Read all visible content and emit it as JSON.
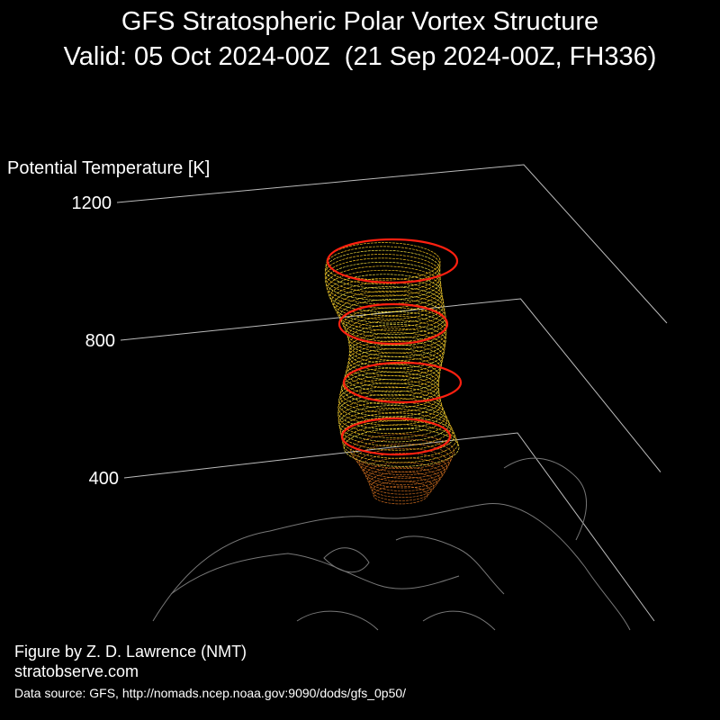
{
  "chart_data": {
    "type": "3d-vortex",
    "title": "GFS Stratospheric Polar Vortex Structure",
    "subtitle": "Valid: 05 Oct 2024-00Z  (21 Sep 2024-00Z, FH336)",
    "zlabel": "Potential Temperature [K]",
    "zlim": [
      400,
      1200
    ],
    "zticks": [
      400,
      800,
      1200
    ],
    "credit": "Figure by Z. D. Lawrence (NMT)",
    "website": "stratobserve.com",
    "source": "Data source: GFS, http://nomads.ncep.noaa.gov:9090/dods/gfs_0p50/"
  }
}
